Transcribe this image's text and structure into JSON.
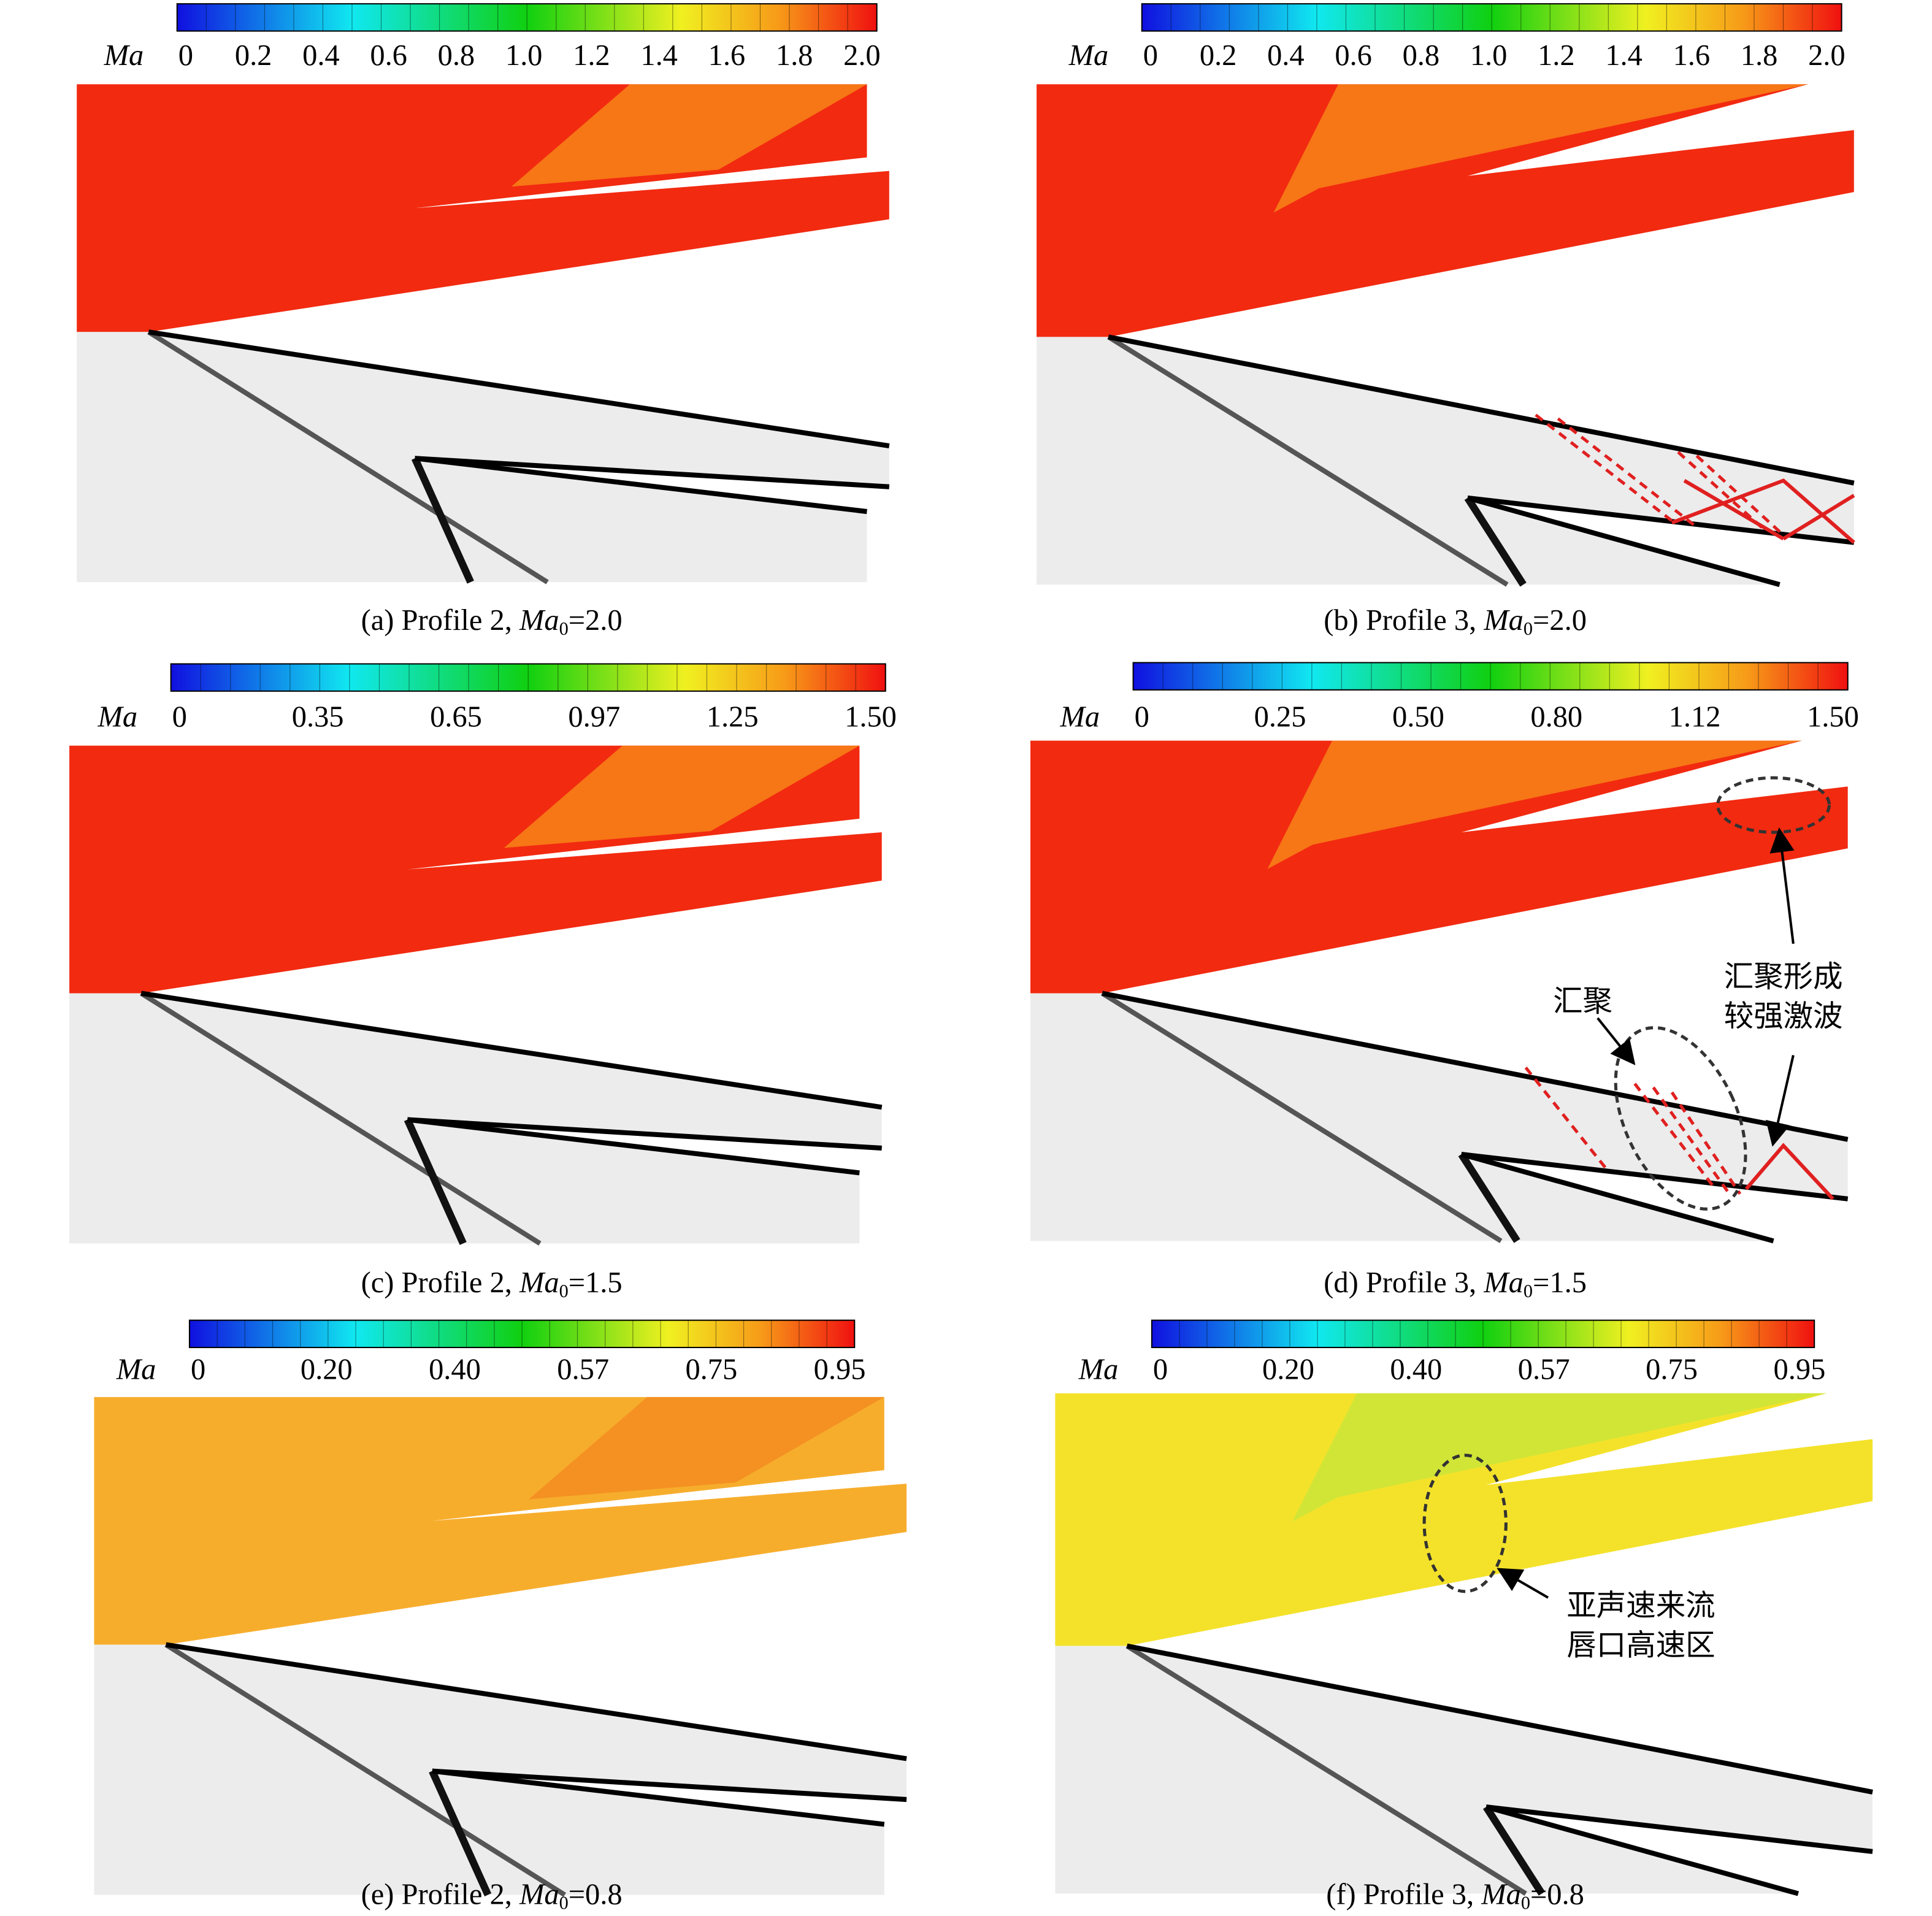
{
  "panels": [
    {
      "colorbar": {
        "label": "Ma",
        "ticks": [
          "0",
          "0.2",
          "0.4",
          "0.6",
          "0.8",
          "1.0",
          "1.2",
          "1.4",
          "1.6",
          "1.8",
          "2.0"
        ]
      },
      "caption": {
        "label": "(a) Profile 2, ",
        "symbol": "Ma",
        "subscript": "0",
        "condition": "=2.0"
      }
    },
    {
      "colorbar": {
        "label": "Ma",
        "ticks": [
          "0",
          "0.2",
          "0.4",
          "0.6",
          "0.8",
          "1.0",
          "1.2",
          "1.4",
          "1.6",
          "1.8",
          "2.0"
        ]
      },
      "caption": {
        "label": "(b) Profile 3, ",
        "symbol": "Ma",
        "subscript": "0",
        "condition": "=2.0"
      }
    },
    {
      "colorbar": {
        "label": "Ma",
        "ticks": [
          "0",
          "0.35",
          "0.65",
          "0.97",
          "1.25",
          "1.50"
        ]
      },
      "caption": {
        "label": "(c) Profile 2, ",
        "symbol": "Ma",
        "subscript": "0",
        "condition": "=1.5"
      }
    },
    {
      "colorbar": {
        "label": "Ma",
        "ticks": [
          "0",
          "0.25",
          "0.50",
          "0.80",
          "1.12",
          "1.50"
        ]
      },
      "caption": {
        "label": "(d) Profile 3, ",
        "symbol": "Ma",
        "subscript": "0",
        "condition": "=1.5"
      },
      "annotations": [
        "汇聚",
        "汇聚形成",
        "较强激波"
      ]
    },
    {
      "colorbar": {
        "label": "Ma",
        "ticks": [
          "0",
          "0.20",
          "0.40",
          "0.57",
          "0.75",
          "0.95"
        ]
      },
      "caption": {
        "label": "(e) Profile 2, ",
        "symbol": "Ma",
        "subscript": "0",
        "condition": "=0.8"
      }
    },
    {
      "colorbar": {
        "label": "Ma",
        "ticks": [
          "0",
          "0.20",
          "0.40",
          "0.57",
          "0.75",
          "0.95"
        ]
      },
      "caption": {
        "label": "(f) Profile 3, ",
        "symbol": "Ma",
        "subscript": "0",
        "condition": "=0.8"
      },
      "annotations": [
        "亚声速来流",
        "唇口高速区"
      ]
    }
  ]
}
